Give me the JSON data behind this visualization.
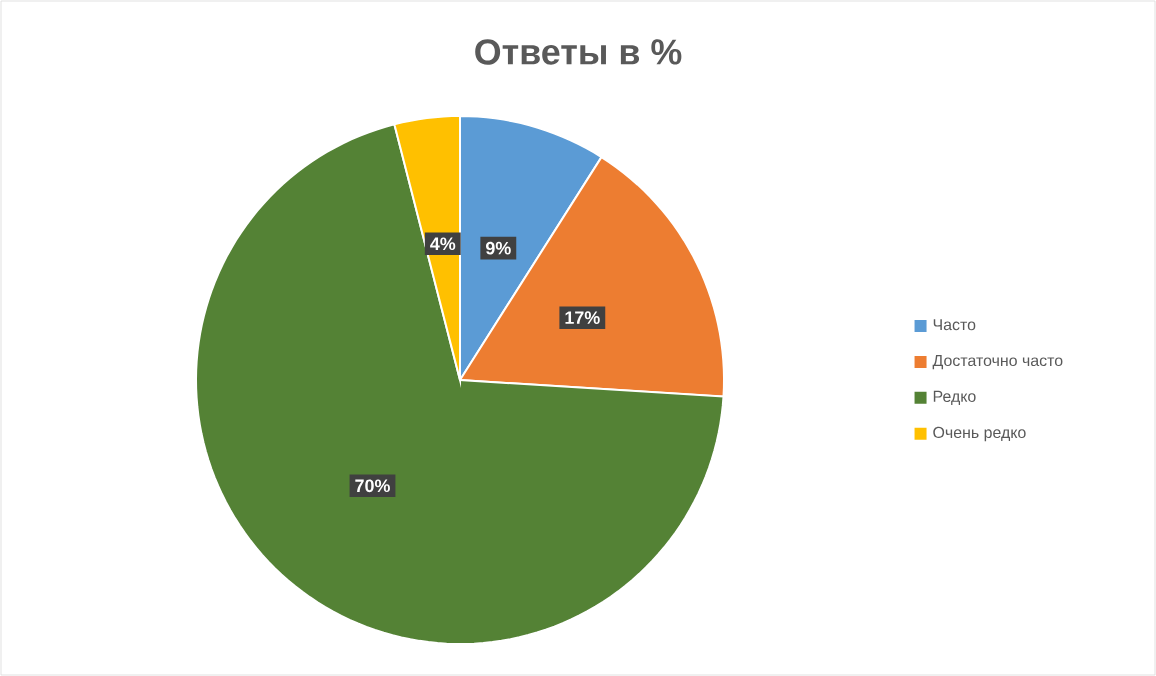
{
  "chart_data": {
    "type": "pie",
    "title": "Ответы в %",
    "categories": [
      "Часто",
      "Достаточно часто",
      "Редко",
      "Очень редко"
    ],
    "values": [
      9,
      17,
      70,
      4
    ],
    "colors": [
      "#5b9bd5",
      "#ed7d31",
      "#548235",
      "#ffc000"
    ],
    "value_labels": [
      "9%",
      "17%",
      "70%",
      "4%"
    ],
    "legend": "right"
  }
}
